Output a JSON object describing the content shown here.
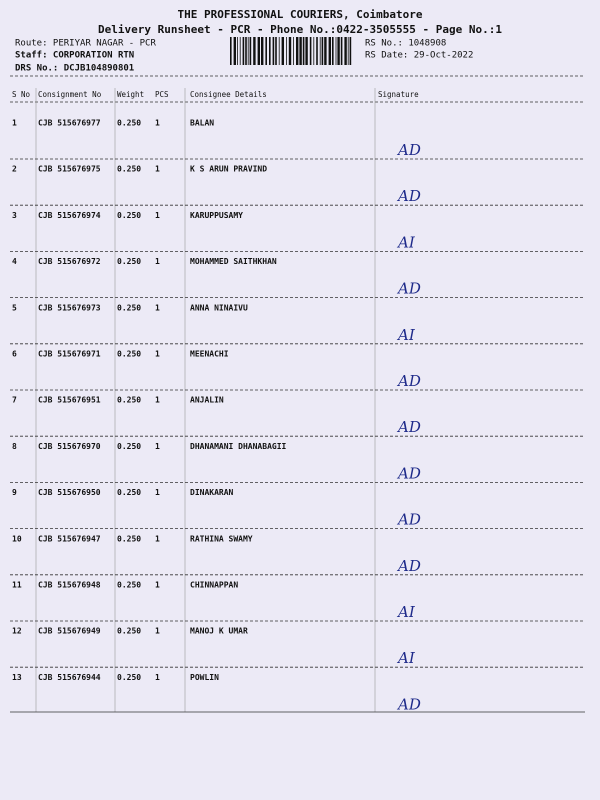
{
  "header": {
    "company": "THE PROFESSIONAL COURIERS, Coimbatore",
    "subtitle": "Delivery Runsheet - PCR - Phone No.:0422-3505555 - Page No.:1",
    "route": "Route: PERIYAR NAGAR - PCR",
    "staff": "Staff: CORPORATION RTN",
    "drs": "DRS No.: DCJB104890801",
    "rs_no": "RS No.: 1048908",
    "rs_date": "RS Date: 29-Oct-2022"
  },
  "table": {
    "columns": [
      "S No",
      "Consignment No",
      "Weight",
      "PCS",
      "Consignee Details",
      "Signature"
    ],
    "rows": [
      [
        "1",
        "CJB 515676977",
        "0.250",
        "1",
        "BALAN",
        "AD"
      ],
      [
        "2",
        "CJB 515676975",
        "0.250",
        "1",
        "K S ARUN PRAVIND",
        "AD"
      ],
      [
        "3",
        "CJB 515676974",
        "0.250",
        "1",
        "KARUPPUSAMY",
        "AI"
      ],
      [
        "4",
        "CJB 515676972",
        "0.250",
        "1",
        "MOHAMMED SAITHKHAN",
        "AD"
      ],
      [
        "5",
        "CJB 515676973",
        "0.250",
        "1",
        "ANNA NINAIVU",
        "AI"
      ],
      [
        "6",
        "CJB 515676971",
        "0.250",
        "1",
        "MEENACHI",
        "AD"
      ],
      [
        "7",
        "CJB 515676951",
        "0.250",
        "1",
        "ANJALIN",
        "AD"
      ],
      [
        "8",
        "CJB 515676970",
        "0.250",
        "1",
        "DHANAMANI  DHANABAGII",
        "AD"
      ],
      [
        "9",
        "CJB 515676950",
        "0.250",
        "1",
        "DINAKARAN",
        "AD"
      ],
      [
        "10",
        "CJB 515676947",
        "0.250",
        "1",
        "RATHINA SWAMY",
        "AD"
      ],
      [
        "11",
        "CJB 515676948",
        "0.250",
        "1",
        "CHINNAPPAN",
        "AI"
      ],
      [
        "12",
        "CJB 515676949",
        "0.250",
        "1",
        "MANOJ K UMAR",
        "AI"
      ],
      [
        "13",
        "CJB 515676944",
        "0.250",
        "1",
        "POWLIN",
        "AD"
      ]
    ]
  }
}
